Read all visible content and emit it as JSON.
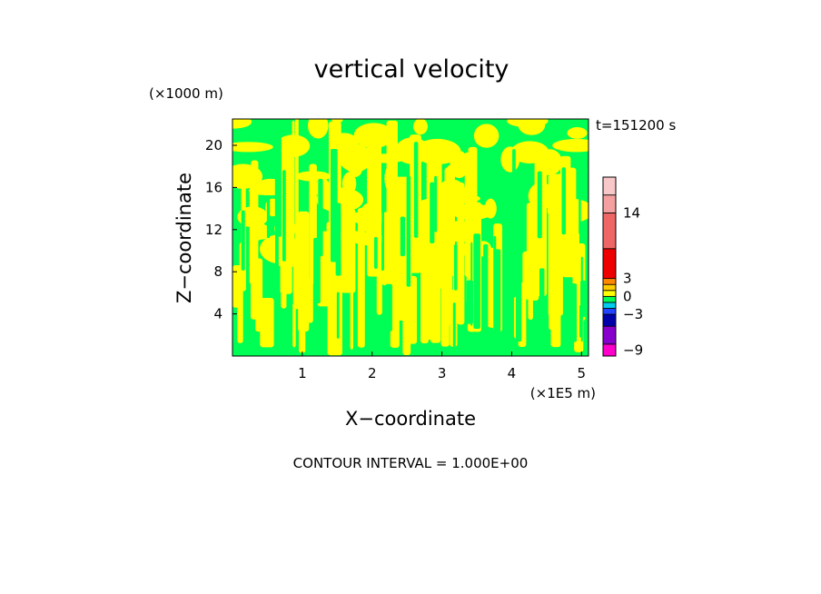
{
  "chart_data": {
    "type": "heatmap",
    "title": "vertical velocity",
    "xlabel": "X−coordinate",
    "ylabel": "Z−coordinate",
    "x_unit": "(×1E5 m)",
    "y_unit": "(×1000 m)",
    "time_label": "t=151200 s",
    "xlim": [
      0,
      5.1
    ],
    "ylim": [
      0,
      22.5
    ],
    "x_ticks": [
      "1",
      "2",
      "3",
      "4",
      "5"
    ],
    "y_ticks": [
      "4",
      "8",
      "12",
      "16",
      "20"
    ],
    "grid": false,
    "colorbar": {
      "tick_labels": [
        "14",
        "3",
        "0",
        "−3",
        "−9"
      ],
      "levels": [
        {
          "min": -10,
          "max": -8,
          "color": "#ff00cc"
        },
        {
          "min": -8,
          "max": -5,
          "color": "#8800cc"
        },
        {
          "min": -5,
          "max": -3,
          "color": "#0000aa"
        },
        {
          "min": -3,
          "max": -2,
          "color": "#2244ff"
        },
        {
          "min": -2,
          "max": -1,
          "color": "#00ccee"
        },
        {
          "min": -1,
          "max": 0,
          "color": "#00ff55"
        },
        {
          "min": 0,
          "max": 1,
          "color": "#ffff00"
        },
        {
          "min": 1,
          "max": 2,
          "color": "#ffcc00"
        },
        {
          "min": 2,
          "max": 3,
          "color": "#ff8800"
        },
        {
          "min": 3,
          "max": 8,
          "color": "#ee0000"
        },
        {
          "min": 8,
          "max": 14,
          "color": "#ee6666"
        },
        {
          "min": 14,
          "max": 17,
          "color": "#f4a0a0"
        },
        {
          "min": 17,
          "max": 20,
          "color": "#f8c8c8"
        }
      ]
    },
    "field_note": "",
    "dominant_colors": {
      "positive": "#ffff00",
      "negative": "#00ff55"
    }
  },
  "footer": {
    "contour_interval": "CONTOUR INTERVAL = 1.000E+00"
  }
}
